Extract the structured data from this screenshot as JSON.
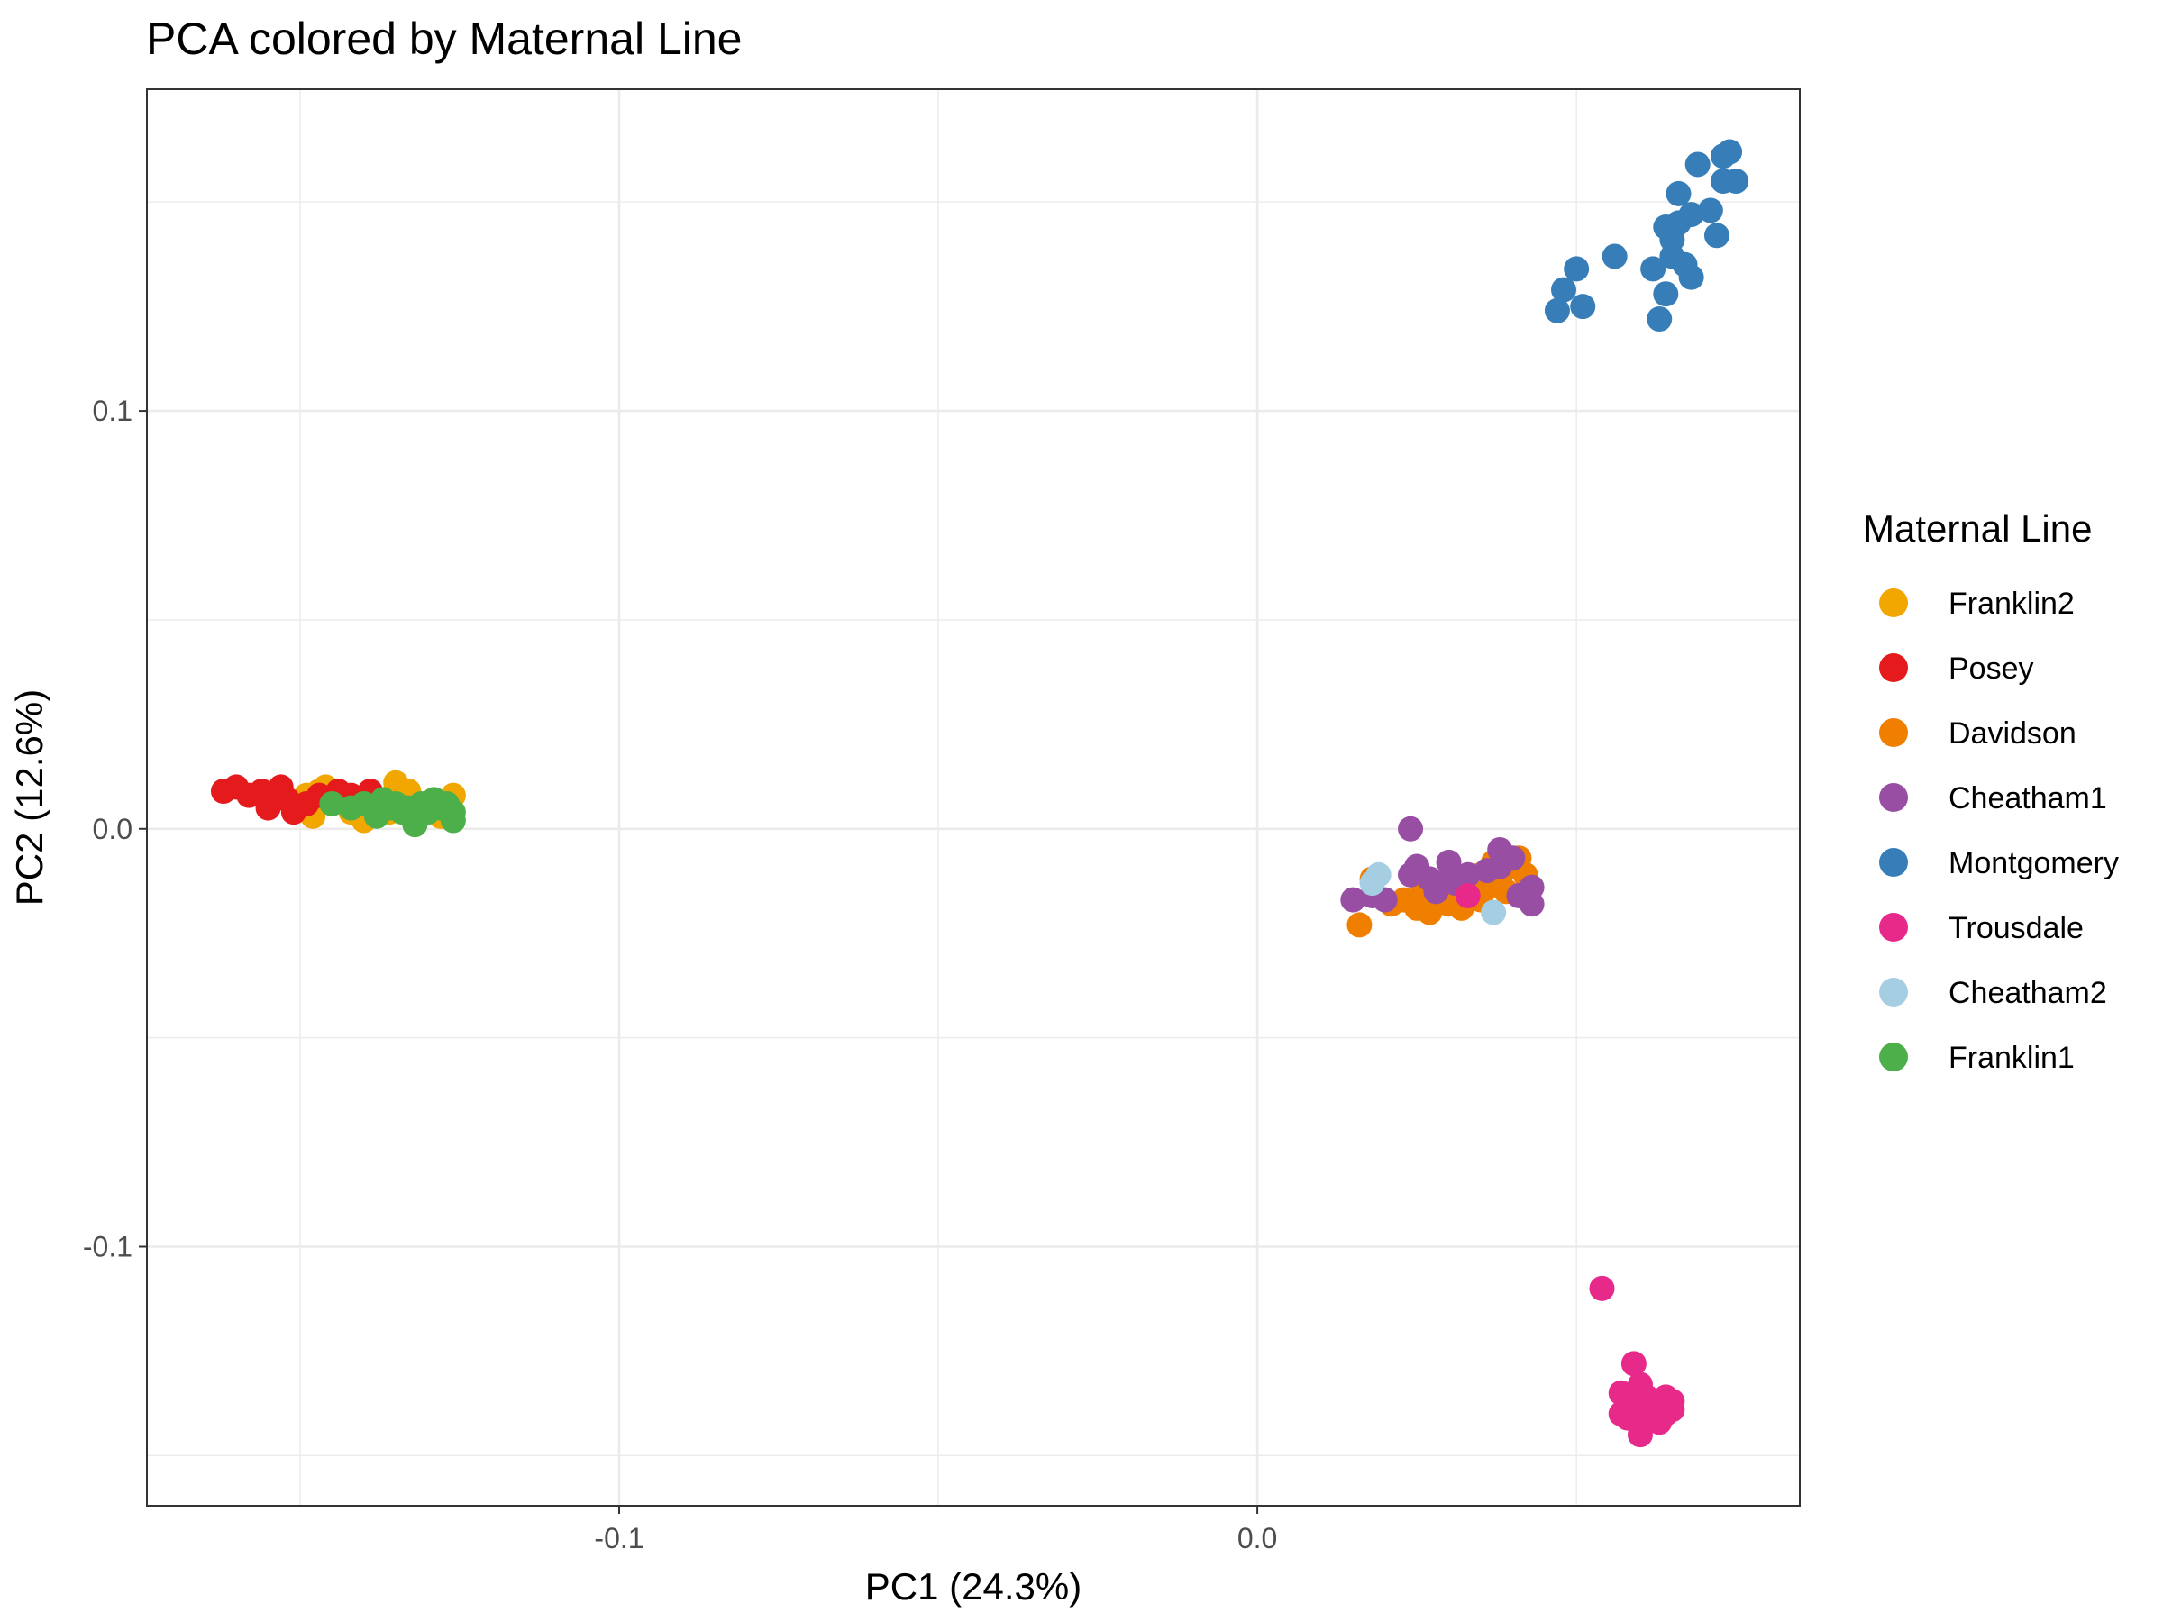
{
  "chart_data": {
    "type": "scatter",
    "title": "PCA colored by Maternal Line",
    "xlabel": "PC1 (24.3%)",
    "ylabel": "PC2 (12.6%)",
    "xlim": [
      -0.174,
      0.085
    ],
    "ylim": [
      -0.162,
      0.177
    ],
    "x_ticks": [
      -0.1,
      0.0
    ],
    "x_tick_labels": [
      "-0.1",
      "0.0"
    ],
    "y_ticks": [
      -0.1,
      0.0,
      0.1
    ],
    "y_tick_labels": [
      "-0.1",
      "0.0",
      "0.1"
    ],
    "grid": true,
    "legend": {
      "title": "Maternal Line",
      "position": "right"
    },
    "series": [
      {
        "name": "Franklin2",
        "color": "#F2A600",
        "points": [
          [
            -0.149,
            0.008
          ],
          [
            -0.147,
            0.009
          ],
          [
            -0.146,
            0.01
          ],
          [
            -0.144,
            0.007
          ],
          [
            -0.148,
            0.003
          ],
          [
            -0.142,
            0.004
          ],
          [
            -0.14,
            0.002
          ],
          [
            -0.138,
            0.005
          ],
          [
            -0.135,
            0.011
          ],
          [
            -0.133,
            0.009
          ],
          [
            -0.13,
            0.006
          ],
          [
            -0.128,
            0.003
          ],
          [
            -0.126,
            0.008
          ],
          [
            -0.14,
            0.007
          ],
          [
            -0.136,
            0.004
          ]
        ]
      },
      {
        "name": "Posey",
        "color": "#E41A1C",
        "points": [
          [
            -0.162,
            0.009
          ],
          [
            -0.16,
            0.01
          ],
          [
            -0.158,
            0.008
          ],
          [
            -0.156,
            0.009
          ],
          [
            -0.155,
            0.005
          ],
          [
            -0.153,
            0.01
          ],
          [
            -0.152,
            0.007
          ],
          [
            -0.151,
            0.004
          ],
          [
            -0.149,
            0.006
          ],
          [
            -0.147,
            0.008
          ],
          [
            -0.144,
            0.009
          ],
          [
            -0.142,
            0.008
          ],
          [
            -0.139,
            0.009
          ]
        ]
      },
      {
        "name": "Davidson",
        "color": "#F07F00",
        "points": [
          [
            0.016,
            -0.023
          ],
          [
            0.018,
            -0.012
          ],
          [
            0.021,
            -0.018
          ],
          [
            0.023,
            -0.017
          ],
          [
            0.025,
            -0.019
          ],
          [
            0.026,
            -0.014
          ],
          [
            0.027,
            -0.02
          ],
          [
            0.029,
            -0.015
          ],
          [
            0.03,
            -0.018
          ],
          [
            0.031,
            -0.013
          ],
          [
            0.032,
            -0.019
          ],
          [
            0.033,
            -0.016
          ],
          [
            0.034,
            -0.012
          ],
          [
            0.035,
            -0.011
          ],
          [
            0.036,
            -0.014
          ],
          [
            0.037,
            -0.008
          ],
          [
            0.038,
            -0.012
          ],
          [
            0.039,
            -0.015
          ],
          [
            0.04,
            -0.009
          ],
          [
            0.041,
            -0.007
          ],
          [
            0.042,
            -0.011
          ],
          [
            0.035,
            -0.017
          ],
          [
            0.028,
            -0.016
          ]
        ]
      },
      {
        "name": "Cheatham1",
        "color": "#984EA3",
        "points": [
          [
            0.015,
            -0.017
          ],
          [
            0.018,
            -0.016
          ],
          [
            0.02,
            -0.017
          ],
          [
            0.024,
            0.0
          ],
          [
            0.024,
            -0.011
          ],
          [
            0.025,
            -0.009
          ],
          [
            0.027,
            -0.012
          ],
          [
            0.028,
            -0.015
          ],
          [
            0.029,
            -0.013
          ],
          [
            0.03,
            -0.008
          ],
          [
            0.033,
            -0.011
          ],
          [
            0.036,
            -0.01
          ],
          [
            0.038,
            -0.009
          ],
          [
            0.04,
            -0.007
          ],
          [
            0.041,
            -0.016
          ],
          [
            0.043,
            -0.014
          ],
          [
            0.043,
            -0.018
          ],
          [
            0.031,
            -0.013
          ],
          [
            0.038,
            -0.005
          ]
        ]
      },
      {
        "name": "Montgomery",
        "color": "#377EB8",
        "points": [
          [
            0.047,
            0.124
          ],
          [
            0.048,
            0.129
          ],
          [
            0.05,
            0.134
          ],
          [
            0.051,
            0.125
          ],
          [
            0.056,
            0.137
          ],
          [
            0.062,
            0.134
          ],
          [
            0.063,
            0.122
          ],
          [
            0.064,
            0.128
          ],
          [
            0.064,
            0.144
          ],
          [
            0.065,
            0.137
          ],
          [
            0.065,
            0.141
          ],
          [
            0.066,
            0.145
          ],
          [
            0.066,
            0.152
          ],
          [
            0.067,
            0.135
          ],
          [
            0.068,
            0.147
          ],
          [
            0.068,
            0.132
          ],
          [
            0.069,
            0.159
          ],
          [
            0.071,
            0.148
          ],
          [
            0.072,
            0.142
          ],
          [
            0.073,
            0.155
          ],
          [
            0.073,
            0.161
          ],
          [
            0.074,
            0.162
          ],
          [
            0.075,
            0.155
          ]
        ]
      },
      {
        "name": "Trousdale",
        "color": "#E7298A",
        "points": [
          [
            0.054,
            -0.11
          ],
          [
            0.057,
            -0.14
          ],
          [
            0.057,
            -0.135
          ],
          [
            0.058,
            -0.138
          ],
          [
            0.058,
            -0.141
          ],
          [
            0.059,
            -0.128
          ],
          [
            0.059,
            -0.137
          ],
          [
            0.06,
            -0.133
          ],
          [
            0.06,
            -0.14
          ],
          [
            0.06,
            -0.145
          ],
          [
            0.061,
            -0.136
          ],
          [
            0.061,
            -0.139
          ],
          [
            0.062,
            -0.141
          ],
          [
            0.062,
            -0.137
          ],
          [
            0.063,
            -0.138
          ],
          [
            0.063,
            -0.142
          ],
          [
            0.064,
            -0.136
          ],
          [
            0.064,
            -0.14
          ],
          [
            0.065,
            -0.137
          ],
          [
            0.065,
            -0.139
          ],
          [
            0.033,
            -0.016
          ]
        ]
      },
      {
        "name": "Cheatham2",
        "color": "#A6CEE3",
        "points": [
          [
            0.018,
            -0.013
          ],
          [
            0.019,
            -0.011
          ],
          [
            0.037,
            -0.02
          ]
        ]
      },
      {
        "name": "Franklin1",
        "color": "#4DAF4A",
        "points": [
          [
            -0.145,
            0.006
          ],
          [
            -0.142,
            0.005
          ],
          [
            -0.14,
            0.006
          ],
          [
            -0.138,
            0.003
          ],
          [
            -0.137,
            0.007
          ],
          [
            -0.136,
            0.005
          ],
          [
            -0.135,
            0.006
          ],
          [
            -0.134,
            0.004
          ],
          [
            -0.133,
            0.005
          ],
          [
            -0.132,
            0.001
          ],
          [
            -0.131,
            0.006
          ],
          [
            -0.13,
            0.004
          ],
          [
            -0.129,
            0.007
          ],
          [
            -0.128,
            0.005
          ],
          [
            -0.127,
            0.006
          ],
          [
            -0.126,
            0.004
          ],
          [
            -0.126,
            0.002
          ]
        ]
      }
    ]
  }
}
